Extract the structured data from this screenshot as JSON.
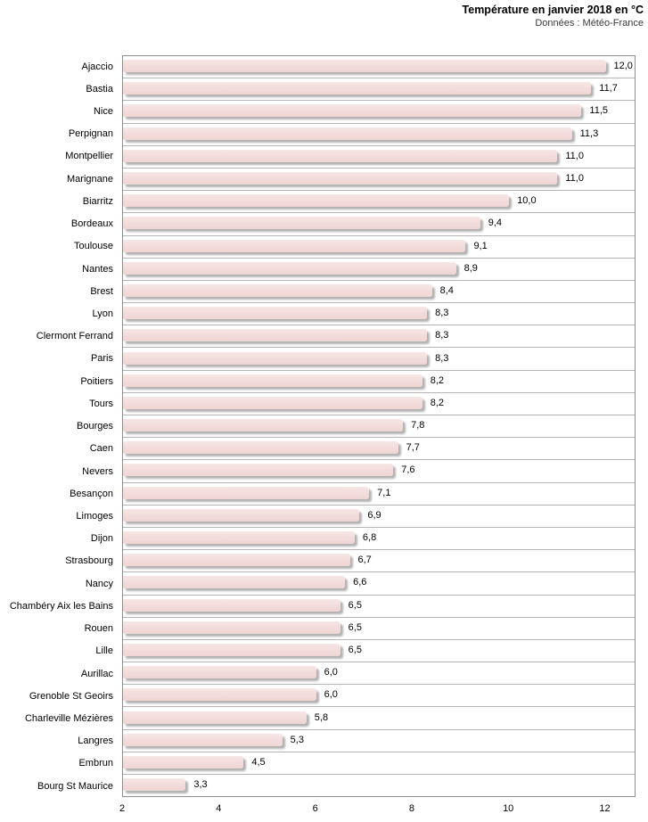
{
  "header": {
    "title": "Température en janvier 2018 en °C",
    "subtitle": "Données : Météo-France"
  },
  "chart_data": {
    "type": "bar",
    "orientation": "horizontal",
    "title": "Température en janvier 2018 en °C",
    "subtitle": "Données : Météo-France",
    "unit": "°C",
    "xlabel": "",
    "ylabel": "",
    "xlim": [
      2,
      12.6
    ],
    "xticks": [
      2,
      4,
      6,
      8,
      10,
      12
    ],
    "grid": "category-separator-lines",
    "legend": "none",
    "categories": [
      "Ajaccio",
      "Bastia",
      "Nice",
      "Perpignan",
      "Montpellier",
      "Marignane",
      "Biarritz",
      "Bordeaux",
      "Toulouse",
      "Nantes",
      "Brest",
      "Lyon",
      "Clermont Ferrand",
      "Paris",
      "Poitiers",
      "Tours",
      "Bourges",
      "Caen",
      "Nevers",
      "Besançon",
      "Limoges",
      "Dijon",
      "Strasbourg",
      "Nancy",
      "Chambéry Aix les Bains",
      "Rouen",
      "Lille",
      "Aurillac",
      "Grenoble St Geoirs",
      "Charleville Mézières",
      "Langres",
      "Embrun",
      "Bourg St Maurice"
    ],
    "values": [
      12.0,
      11.7,
      11.5,
      11.3,
      11.0,
      11.0,
      10.0,
      9.4,
      9.1,
      8.9,
      8.4,
      8.3,
      8.3,
      8.3,
      8.2,
      8.2,
      7.8,
      7.7,
      7.6,
      7.1,
      6.9,
      6.8,
      6.7,
      6.6,
      6.5,
      6.5,
      6.5,
      6.0,
      6.0,
      5.8,
      5.3,
      4.5,
      3.3
    ],
    "value_labels": [
      "12,0",
      "11,7",
      "11,5",
      "11,3",
      "11,0",
      "11,0",
      "10,0",
      "9,4",
      "9,1",
      "8,9",
      "8,4",
      "8,3",
      "8,3",
      "8,3",
      "8,2",
      "8,2",
      "7,8",
      "7,7",
      "7,6",
      "7,1",
      "6,9",
      "6,8",
      "6,7",
      "6,6",
      "6,5",
      "6,5",
      "6,5",
      "6,0",
      "6,0",
      "5,8",
      "5,3",
      "4,5",
      "3,3"
    ]
  },
  "colors": {
    "bar_fill": "#f2dcdb",
    "bar_shadow": "#b2b2b2",
    "plot_border": "#8c8c8c",
    "row_separator": "#b5b5b5",
    "text": "#000000",
    "subtitle_text": "#3a3a3a",
    "background": "#ffffff"
  }
}
